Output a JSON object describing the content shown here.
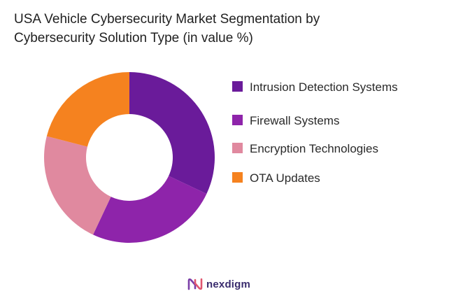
{
  "title_line1": "USA Vehicle Cybersecurity Market Segmentation by",
  "title_line2": "Cybersecurity Solution Type (in value %)",
  "chart_data": {
    "type": "pie",
    "donut": true,
    "title": "USA Vehicle Cybersecurity Market Segmentation by Cybersecurity Solution Type (in value %)",
    "legend_position": "right",
    "series": [
      {
        "name": "Intrusion Detection Systems",
        "value": 32,
        "color": "#6a1b9a"
      },
      {
        "name": "Firewall Systems",
        "value": 25,
        "color": "#8e24aa"
      },
      {
        "name": "Encryption Technologies",
        "value": 22,
        "color": "#e0899f"
      },
      {
        "name": "OTA Updates",
        "value": 21,
        "color": "#f5821f"
      }
    ]
  },
  "legend": [
    {
      "label": "Intrusion Detection Systems",
      "color": "#6a1b9a"
    },
    {
      "label": "Firewall Systems",
      "color": "#8e24aa"
    },
    {
      "label": "Encryption Technologies",
      "color": "#e0899f"
    },
    {
      "label": "OTA Updates",
      "color": "#f5821f"
    }
  ],
  "logo": {
    "text": "nexdigm",
    "icon": "nexdigm-logo-icon"
  }
}
